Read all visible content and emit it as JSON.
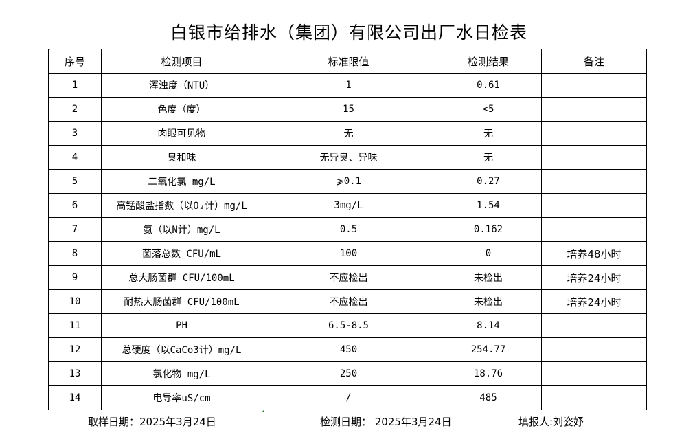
{
  "title": "白银市给排水（集团）有限公司出厂水日检表",
  "table": {
    "headers": [
      "序号",
      "检测项目",
      "标准限值",
      "检测结果",
      "备注"
    ],
    "rows": [
      [
        "1",
        "浑浊度（NTU）",
        "1",
        "0.61",
        ""
      ],
      [
        "2",
        "色度（度）",
        "15",
        "<5",
        ""
      ],
      [
        "3",
        "肉眼可见物",
        "无",
        "无",
        ""
      ],
      [
        "4",
        "臭和味",
        "无异臭、异味",
        "无",
        ""
      ],
      [
        "5",
        "二氧化氯 mg/L",
        "⩾0.1",
        "0.27",
        ""
      ],
      [
        "6",
        "高锰酸盐指数（以O₂计）mg/L",
        "3mg/L",
        "1.54",
        ""
      ],
      [
        "7",
        "氨（以N计）mg/L",
        "0.5",
        "0.162",
        ""
      ],
      [
        "8",
        "菌落总数 CFU/mL",
        "100",
        "0",
        "培养48小时"
      ],
      [
        "9",
        "总大肠菌群 CFU/100mL",
        "不应检出",
        "未检出",
        "培养24小时"
      ],
      [
        "10",
        "耐热大肠菌群 CFU/100mL",
        "不应检出",
        "未检出",
        "培养24小时"
      ],
      [
        "11",
        "PH",
        "6.5-8.5",
        "8.14",
        ""
      ],
      [
        "12",
        "总硬度（以CaCo3计）mg/L",
        "450",
        "254.77",
        ""
      ],
      [
        "13",
        "氯化物 mg/L",
        "250",
        "18.76",
        ""
      ],
      [
        "14",
        "电导率uS/cm",
        "/",
        "485",
        ""
      ]
    ]
  },
  "footer": {
    "sampling_date": "取样日期：2025年3月24日",
    "test_date": "检测日期： 2025年3月24日",
    "reporter": "填报人:刘姿妤"
  }
}
